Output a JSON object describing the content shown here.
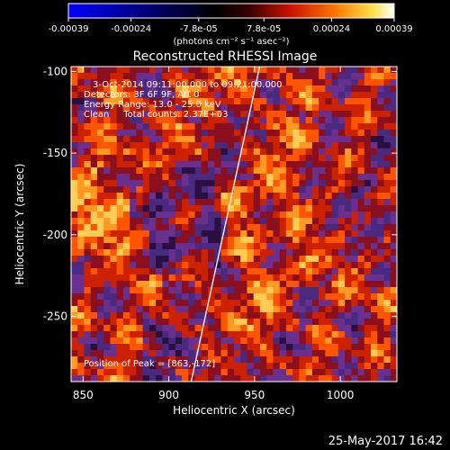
{
  "chart_data": {
    "type": "heatmap",
    "title": "Reconstructed RHESSI Image",
    "xlabel": "Heliocentric X (arcsec)",
    "ylabel": "Heliocentric Y (arcsec)",
    "xlim": [
      843,
      1033
    ],
    "ylim": [
      -290,
      -97
    ],
    "x_ticks": [
      850,
      900,
      950,
      1000
    ],
    "y_ticks": [
      -100,
      -150,
      -200,
      -250
    ],
    "colorbar": {
      "range": [
        -0.00039,
        0.00039
      ],
      "ticks": [
        "-0.00039",
        "-0.00024",
        "-7.8e-05",
        "7.8e-05",
        "0.00024",
        "0.00039"
      ],
      "tick_values": [
        -0.00039,
        -0.00024,
        -7.8e-05,
        7.8e-05,
        0.00024,
        0.00039
      ],
      "unit_label": "(photons cm⁻² s⁻¹ asec⁻²)",
      "palette": [
        "#0000ff",
        "#000000",
        "#5a2a8a",
        "#cc1100",
        "#ff6600",
        "#ffcc33",
        "#ffffff"
      ]
    },
    "limb_line": {
      "x": [
        913,
        953
      ],
      "y": [
        -290,
        -97
      ]
    },
    "annotations": [
      "3-Oct-2014 09:11:00.000 to 09:21:00.000",
      "Detectors: 3F 6F 9F, Att 0",
      "Energy Range: 13.0 - 25.0 keV",
      "Clean     Total counts: 2.37E+03",
      "Position of Peak = [863,-172]"
    ],
    "peak": {
      "x": 863,
      "y": -172
    }
  },
  "footer_timestamp": "25-May-2017 16:42"
}
